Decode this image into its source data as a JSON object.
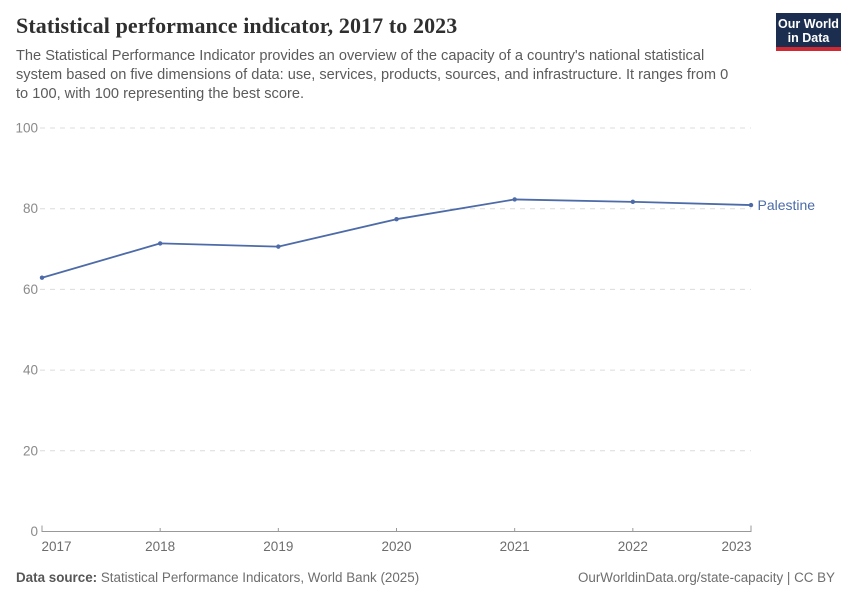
{
  "chart_data": {
    "type": "line",
    "title": "Statistical performance indicator, 2017 to 2023",
    "subtitle": "The Statistical Performance Indicator provides an overview of the capacity of a country's national statistical system based on five dimensions of data: use, services, products, sources, and infrastructure. It ranges from 0 to 100, with 100 representing the best score.",
    "x": [
      2017,
      2018,
      2019,
      2020,
      2021,
      2022,
      2023
    ],
    "series": [
      {
        "name": "Palestine",
        "color": "#4C6BA8",
        "values": [
          62.9,
          71.4,
          70.6,
          77.4,
          82.3,
          81.7,
          80.9
        ]
      }
    ],
    "xlabel": "",
    "ylabel": "",
    "ylim": [
      0,
      100
    ],
    "yticks": [
      0,
      20,
      40,
      60,
      80,
      100
    ],
    "grid": "horizontal-dashed",
    "legend_position": "line-end-right",
    "axis_label_color": "#8a8a8a",
    "x_label_color": "#6d6d6d",
    "gridline_color": "#dcdcdc",
    "axis_line_color": "#999999"
  },
  "logo": {
    "line1": "Our World",
    "line2": "in Data",
    "bg_color": "#1b2e4f",
    "accent_color": "#cf2a33"
  },
  "footer": {
    "source_label": "Data source:",
    "source_text": "Statistical Performance Indicators, World Bank (2025)",
    "credit_text": "OurWorldinData.org/state-capacity | CC BY"
  }
}
